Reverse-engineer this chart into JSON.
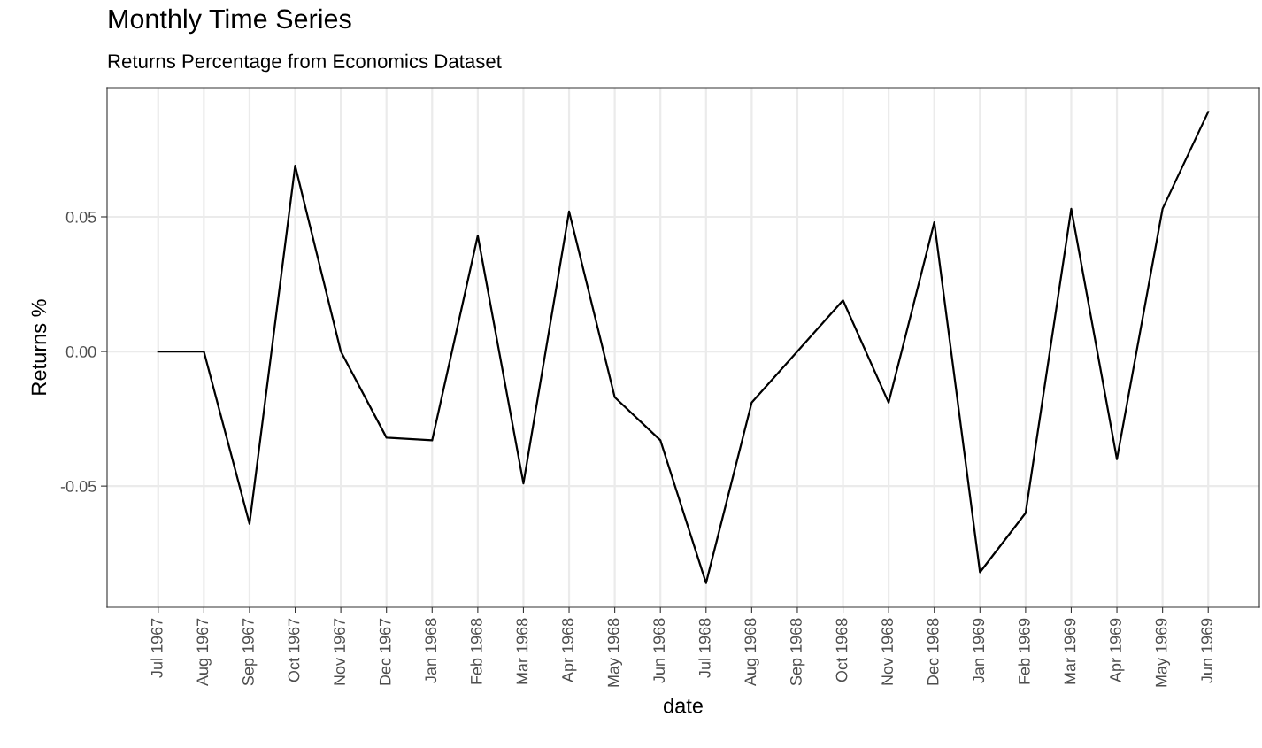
{
  "chart_data": {
    "type": "line",
    "title": "Monthly Time Series",
    "subtitle": "Returns Percentage from Economics Dataset",
    "xlabel": "date",
    "ylabel": "Returns %",
    "categories": [
      "Jul 1967",
      "Aug 1967",
      "Sep 1967",
      "Oct 1967",
      "Nov 1967",
      "Dec 1967",
      "Jan 1968",
      "Feb 1968",
      "Mar 1968",
      "Apr 1968",
      "May 1968",
      "Jun 1968",
      "Jul 1968",
      "Aug 1968",
      "Sep 1968",
      "Oct 1968",
      "Nov 1968",
      "Dec 1968",
      "Jan 1969",
      "Feb 1969",
      "Mar 1969",
      "Apr 1969",
      "May 1969",
      "Jun 1969"
    ],
    "series": [
      {
        "color": "#000000",
        "values": [
          0.0,
          0.0,
          -0.064,
          0.069,
          0.0,
          -0.032,
          -0.033,
          0.043,
          -0.049,
          0.052,
          -0.017,
          -0.033,
          -0.086,
          -0.019,
          0.0,
          0.019,
          -0.019,
          0.048,
          -0.082,
          -0.06,
          0.053,
          -0.04,
          0.053,
          0.089
        ]
      }
    ],
    "ylim": [
      -0.095,
      0.098
    ],
    "yticks": [
      {
        "value": -0.05,
        "label": "-0.05"
      },
      {
        "value": 0,
        "label": "0.00"
      },
      {
        "value": 0.05,
        "label": "0.05"
      }
    ],
    "grid": true,
    "marker": "none",
    "line_style": "solid"
  }
}
